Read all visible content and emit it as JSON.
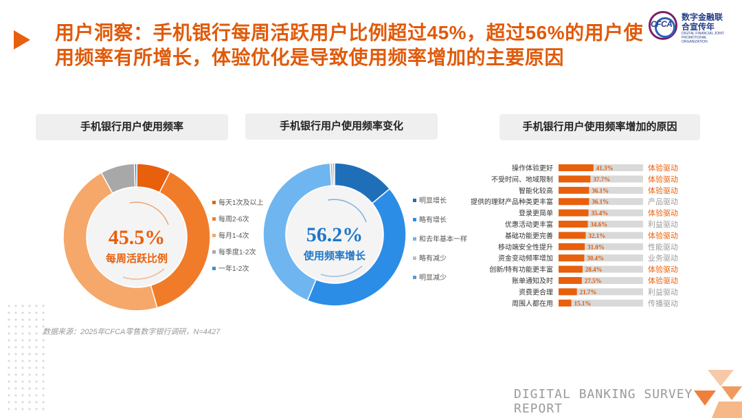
{
  "header": {
    "title": "用户洞察：手机银行每周活跃用户比例超过45%，超过56%的用户使用频率有所增长，体验优化是导致使用频率增加的主要原因"
  },
  "logo": {
    "abbr": "CFCA",
    "cn": "数字金融联合宣传年",
    "en": "DIGITAL FINANCIAL JOINT PROMOTIONAL ORGANIZATION"
  },
  "panels": {
    "left_title": "手机银行用户使用频率",
    "mid_title": "手机银行用户使用频率变化",
    "right_title": "手机银行用户使用频率增加的原因"
  },
  "chart_data": [
    {
      "type": "pie",
      "title": "手机银行用户使用频率",
      "center_value": "45.5%",
      "center_label": "每周活跃比例",
      "slices": [
        {
          "label": "每天1次及以上",
          "value": 7.5,
          "color": "#e8600c"
        },
        {
          "label": "每周2-6次",
          "value": 38.0,
          "color": "#f07c2a"
        },
        {
          "label": "每月1-4次",
          "value": 46.5,
          "color": "#f6a86a"
        },
        {
          "label": "每季度1-2次",
          "value": 7.5,
          "color": "#a8a8a8"
        },
        {
          "label": "一年1-2次",
          "value": 0.5,
          "color": "#3a8fd6"
        }
      ]
    },
    {
      "type": "pie",
      "title": "手机银行用户使用频率变化",
      "center_value": "56.2%",
      "center_label": "使用频率增长",
      "slices": [
        {
          "label": "明显增长",
          "value": 14.0,
          "color": "#1f6fb8"
        },
        {
          "label": "略有增长",
          "value": 42.2,
          "color": "#2b8de6"
        },
        {
          "label": "和去年基本一样",
          "value": 42.8,
          "color": "#6fb6f0"
        },
        {
          "label": "略有减少",
          "value": 0.6,
          "color": "#bcbcbc"
        },
        {
          "label": "明显减少",
          "value": 0.4,
          "color": "#5b9bd5"
        }
      ]
    },
    {
      "type": "bar",
      "title": "手机银行用户使用频率增加的原因",
      "categories": [
        "操作体验更好",
        "不受时间、地域限制",
        "智能化较高",
        "提供的理财产品种类更丰富",
        "登录更简单",
        "优惠活动更丰富",
        "基础功能更完善",
        "移动端安全性提升",
        "资金变动频率增加",
        "创新/特有功能更丰富",
        "账单通知及时",
        "资费更合理",
        "周围人都在用"
      ],
      "values": [
        41.3,
        37.7,
        36.1,
        36.1,
        35.4,
        34.6,
        32.1,
        31.0,
        30.4,
        28.4,
        27.5,
        21.7,
        15.1
      ],
      "value_labels": [
        "41.3%",
        "37.7%",
        "36.1%",
        "36.1%",
        "35.4%",
        "34.6%",
        "32.1%",
        "31.0%",
        "30.4%",
        "28.4%",
        "27.5%",
        "21.7%",
        "15.1%"
      ],
      "drivers": [
        "体验驱动",
        "体验驱动",
        "体验驱动",
        "产品驱动",
        "体验驱动",
        "利益驱动",
        "体验驱动",
        "性能驱动",
        "业务驱动",
        "体验驱动",
        "体验驱动",
        "利益驱动",
        "传播驱动"
      ],
      "driver_highlight": [
        true,
        true,
        true,
        false,
        true,
        false,
        true,
        false,
        false,
        true,
        true,
        false,
        false
      ],
      "xlim": [
        0,
        100
      ],
      "bar_color": "#e8600c",
      "track_color": "#d9d9d9",
      "highlight_color": "#e8600c",
      "muted_color": "#9a9a9a"
    }
  ],
  "footer": {
    "source": "数据来源：2025年CFCA零售数字银行调研，N=4427",
    "report": "DIGITAL BANKING SURVEY REPORT"
  }
}
